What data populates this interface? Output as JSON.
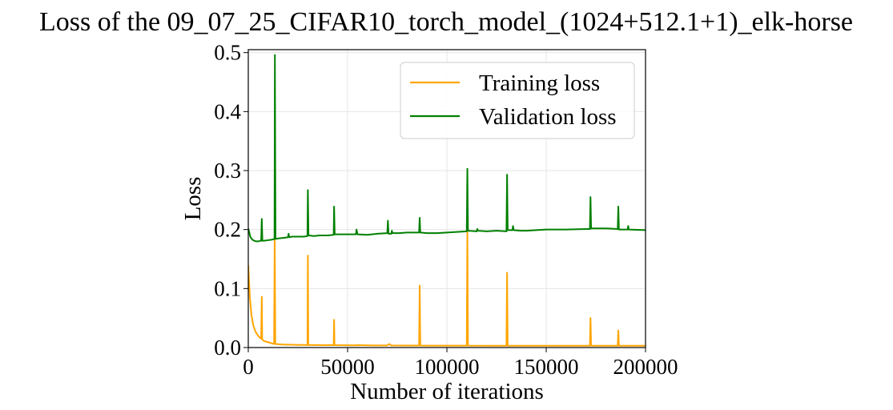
{
  "chart_data": {
    "type": "line",
    "title": "Loss of the 09_07_25_CIFAR10_torch_model_(1024+512.1+1)_elk-horse",
    "xlabel": "Number of iterations",
    "ylabel": "Loss",
    "xlim": [
      0,
      200000
    ],
    "ylim": [
      0,
      0.505
    ],
    "x_ticks": [
      0,
      50000,
      100000,
      150000,
      200000
    ],
    "x_tick_labels": [
      "0",
      "50000",
      "100000",
      "150000",
      "200000"
    ],
    "y_ticks": [
      0.0,
      0.1,
      0.2,
      0.3,
      0.4,
      0.5
    ],
    "y_tick_labels": [
      "0.0",
      "0.1",
      "0.2",
      "0.3",
      "0.4",
      "0.5"
    ],
    "grid": true,
    "legend_position": "top-right",
    "series": [
      {
        "name": "Training loss",
        "color": "#FFA500",
        "x": [
          0,
          800,
          1600,
          2500,
          3500,
          4500,
          5500,
          6500,
          6800,
          7000,
          7200,
          8000,
          9000,
          10000,
          11000,
          12000,
          13000,
          13300,
          13600,
          14000,
          16000,
          18000,
          20000,
          22000,
          24000,
          26000,
          28000,
          29800,
          30000,
          30200,
          33000,
          36000,
          40000,
          43000,
          43200,
          43400,
          48000,
          54000,
          55000,
          60000,
          65000,
          70000,
          71000,
          72000,
          80000,
          86000,
          86300,
          86600,
          90000,
          100000,
          110000,
          110300,
          110600,
          120000,
          130000,
          130300,
          130600,
          140000,
          150000,
          160000,
          172000,
          172300,
          172600,
          180000,
          186000,
          186300,
          186600,
          190000,
          200000
        ],
        "y": [
          0.14,
          0.085,
          0.055,
          0.038,
          0.028,
          0.022,
          0.018,
          0.015,
          0.086,
          0.014,
          0.013,
          0.011,
          0.01,
          0.009,
          0.008,
          0.007,
          0.006,
          0.19,
          0.006,
          0.006,
          0.0055,
          0.005,
          0.005,
          0.0048,
          0.0046,
          0.0045,
          0.0044,
          0.0043,
          0.156,
          0.0043,
          0.0042,
          0.0041,
          0.004,
          0.004,
          0.047,
          0.004,
          0.0039,
          0.0038,
          0.004,
          0.0037,
          0.0036,
          0.0036,
          0.006,
          0.0035,
          0.0034,
          0.0034,
          0.105,
          0.0034,
          0.0033,
          0.0032,
          0.0032,
          0.198,
          0.0032,
          0.0031,
          0.0031,
          0.127,
          0.0031,
          0.003,
          0.003,
          0.003,
          0.003,
          0.05,
          0.003,
          0.003,
          0.003,
          0.029,
          0.003,
          0.003,
          0.003
        ]
      },
      {
        "name": "Validation loss",
        "color": "#008000",
        "x": [
          0,
          1000,
          2000,
          3000,
          4000,
          5000,
          6000,
          6500,
          6800,
          7100,
          8000,
          10000,
          12000,
          13200,
          13400,
          13700,
          15000,
          18000,
          20000,
          20300,
          20600,
          22000,
          25000,
          28000,
          29800,
          30000,
          30300,
          33000,
          36000,
          40000,
          43000,
          43200,
          43500,
          48000,
          52000,
          54200,
          54500,
          55000,
          60000,
          65000,
          70000,
          70300,
          70600,
          72000,
          72300,
          72600,
          76000,
          80000,
          86000,
          86300,
          86600,
          90000,
          95000,
          100000,
          105000,
          110000,
          110300,
          110600,
          115000,
          115300,
          115600,
          120000,
          125000,
          130000,
          130300,
          130600,
          133000,
          133300,
          133600,
          137000,
          140000,
          145000,
          150000,
          160000,
          170000,
          172000,
          172300,
          172600,
          180000,
          186000,
          186300,
          186600,
          190000,
          191000,
          191300,
          191600,
          200000
        ],
        "y": [
          0.202,
          0.188,
          0.183,
          0.181,
          0.18,
          0.18,
          0.181,
          0.181,
          0.218,
          0.181,
          0.181,
          0.182,
          0.183,
          0.184,
          0.496,
          0.184,
          0.185,
          0.186,
          0.187,
          0.193,
          0.187,
          0.188,
          0.188,
          0.188,
          0.189,
          0.267,
          0.19,
          0.189,
          0.19,
          0.19,
          0.191,
          0.239,
          0.192,
          0.192,
          0.192,
          0.192,
          0.2,
          0.192,
          0.191,
          0.193,
          0.194,
          0.215,
          0.193,
          0.193,
          0.198,
          0.194,
          0.194,
          0.195,
          0.195,
          0.22,
          0.195,
          0.194,
          0.194,
          0.195,
          0.196,
          0.197,
          0.303,
          0.198,
          0.197,
          0.201,
          0.198,
          0.197,
          0.198,
          0.197,
          0.293,
          0.199,
          0.199,
          0.206,
          0.199,
          0.198,
          0.198,
          0.199,
          0.2,
          0.2,
          0.201,
          0.201,
          0.255,
          0.202,
          0.202,
          0.201,
          0.239,
          0.2,
          0.2,
          0.2,
          0.206,
          0.2,
          0.199
        ]
      }
    ]
  }
}
